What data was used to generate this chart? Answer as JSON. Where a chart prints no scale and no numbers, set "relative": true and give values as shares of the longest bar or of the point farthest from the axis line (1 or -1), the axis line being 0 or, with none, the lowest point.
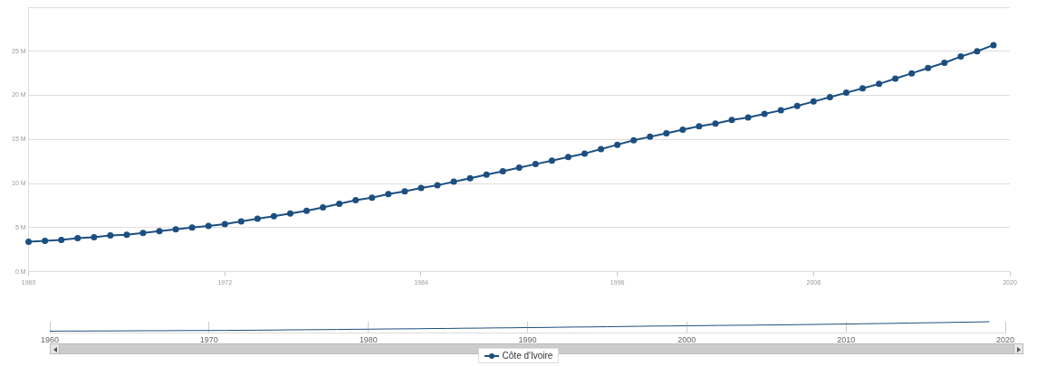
{
  "chart_data": [
    {
      "type": "line",
      "x": [
        1960,
        1961,
        1962,
        1963,
        1964,
        1965,
        1966,
        1967,
        1968,
        1969,
        1970,
        1971,
        1972,
        1973,
        1974,
        1975,
        1976,
        1977,
        1978,
        1979,
        1980,
        1981,
        1982,
        1983,
        1984,
        1985,
        1986,
        1987,
        1988,
        1989,
        1990,
        1991,
        1992,
        1993,
        1994,
        1995,
        1996,
        1997,
        1998,
        1999,
        2000,
        2001,
        2002,
        2003,
        2004,
        2005,
        2006,
        2007,
        2008,
        2009,
        2010,
        2011,
        2012,
        2013,
        2014,
        2015,
        2016,
        2017,
        2018,
        2019
      ],
      "series": [
        {
          "name": "Côte d'Ivoire",
          "color": "#1c4f80",
          "values": [
            3.4,
            3.5,
            3.6,
            3.8,
            3.9,
            4.1,
            4.2,
            4.4,
            4.6,
            4.8,
            5.0,
            5.2,
            5.4,
            5.7,
            6.0,
            6.3,
            6.6,
            6.9,
            7.3,
            7.7,
            8.1,
            8.4,
            8.8,
            9.1,
            9.5,
            9.8,
            10.2,
            10.6,
            11.0,
            11.4,
            11.8,
            12.2,
            12.6,
            13.0,
            13.4,
            13.9,
            14.4,
            14.9,
            15.3,
            15.7,
            16.1,
            16.5,
            16.8,
            17.2,
            17.5,
            17.9,
            18.3,
            18.8,
            19.3,
            19.8,
            20.3,
            20.8,
            21.3,
            21.9,
            22.5,
            23.1,
            23.7,
            24.4,
            25.0,
            25.7
          ]
        }
      ],
      "xlim": [
        1960,
        2020
      ],
      "xticks": [
        1960,
        1972,
        1984,
        1996,
        2008,
        2020
      ],
      "ylim": [
        0,
        30
      ],
      "yticks": [
        {
          "value": 0,
          "label": "0 M"
        },
        {
          "value": 5,
          "label": "5 M"
        },
        {
          "value": 10,
          "label": "10 M"
        },
        {
          "value": 15,
          "label": "15 M"
        },
        {
          "value": 20,
          "label": "20 M"
        },
        {
          "value": 25,
          "label": "25 M"
        },
        {
          "value": 30,
          "label": null
        }
      ],
      "grid": "y",
      "marker": "circle",
      "legend": "bottom"
    },
    {
      "type": "line",
      "relative": true,
      "x": [
        1960,
        1961,
        1962,
        1963,
        1964,
        1965,
        1966,
        1967,
        1968,
        1969,
        1970,
        1971,
        1972,
        1973,
        1974,
        1975,
        1976,
        1977,
        1978,
        1979,
        1980,
        1981,
        1982,
        1983,
        1984,
        1985,
        1986,
        1987,
        1988,
        1989,
        1990,
        1991,
        1992,
        1993,
        1994,
        1995,
        1996,
        1997,
        1998,
        1999,
        2000,
        2001,
        2002,
        2003,
        2004,
        2005,
        2006,
        2007,
        2008,
        2009,
        2010,
        2011,
        2012,
        2013,
        2014,
        2015,
        2016,
        2017,
        2018,
        2019
      ],
      "series": [
        {
          "color": "#1c4f80",
          "values": [
            0.13,
            0.14,
            0.14,
            0.15,
            0.15,
            0.16,
            0.17,
            0.17,
            0.18,
            0.19,
            0.19,
            0.2,
            0.21,
            0.22,
            0.23,
            0.25,
            0.26,
            0.27,
            0.28,
            0.3,
            0.31,
            0.33,
            0.34,
            0.35,
            0.37,
            0.38,
            0.4,
            0.41,
            0.43,
            0.44,
            0.46,
            0.47,
            0.49,
            0.51,
            0.52,
            0.54,
            0.56,
            0.58,
            0.6,
            0.61,
            0.63,
            0.64,
            0.66,
            0.67,
            0.68,
            0.7,
            0.71,
            0.73,
            0.75,
            0.77,
            0.79,
            0.81,
            0.83,
            0.85,
            0.88,
            0.9,
            0.92,
            0.95,
            0.97,
            1
          ]
        }
      ],
      "xlim": [
        1960,
        2020
      ],
      "xticks": [
        1960,
        1970,
        1980,
        1990,
        2000,
        2010,
        2020
      ],
      "tick_labels": "x",
      "marker": "none"
    }
  ]
}
